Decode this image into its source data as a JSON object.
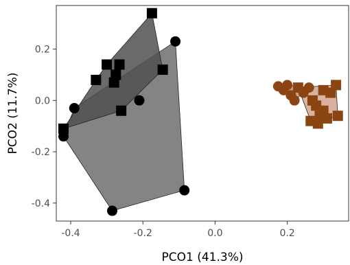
{
  "chart_data": {
    "type": "scatter",
    "title": "",
    "xlabel": "PCO1 (41.3%)",
    "ylabel": "PCO2 (11.7%)",
    "xlim": [
      -0.44,
      0.37
    ],
    "ylim": [
      -0.47,
      0.37
    ],
    "x_ticks": [
      -0.4,
      -0.2,
      0.0,
      0.2
    ],
    "x_tick_labels": [
      "-0.4",
      "-0.2",
      "0.0",
      "0.2"
    ],
    "y_ticks": [
      -0.4,
      -0.2,
      0.0,
      0.2
    ],
    "y_tick_labels": [
      "-0.4",
      "-0.2",
      "0.0",
      "0.2"
    ],
    "grid": false,
    "legend": "none",
    "series": [
      {
        "group": "black-circles",
        "shape": "circle",
        "color": "#000000",
        "hull_fill": "#6e6e6e",
        "hull_opacity": 0.85,
        "points": [
          [
            -0.42,
            -0.14
          ],
          [
            -0.39,
            -0.03
          ],
          [
            -0.285,
            -0.43
          ],
          [
            -0.11,
            0.23
          ],
          [
            -0.21,
            -0.0
          ],
          [
            -0.085,
            -0.35
          ]
        ]
      },
      {
        "group": "black-squares",
        "shape": "square",
        "color": "#000000",
        "hull_fill": "#505050",
        "hull_opacity": 0.85,
        "points": [
          [
            -0.175,
            0.34
          ],
          [
            -0.42,
            -0.11
          ],
          [
            -0.33,
            0.08
          ],
          [
            -0.3,
            0.14
          ],
          [
            -0.265,
            0.14
          ],
          [
            -0.275,
            0.1
          ],
          [
            -0.28,
            0.07
          ],
          [
            -0.145,
            0.12
          ],
          [
            -0.26,
            -0.04
          ]
        ]
      },
      {
        "group": "brown-circles",
        "shape": "circle",
        "color": "#8b4513",
        "hull_fill": "#a0522d",
        "hull_opacity": 0.55,
        "points": [
          [
            0.175,
            0.055
          ],
          [
            0.19,
            0.04
          ],
          [
            0.21,
            0.02
          ],
          [
            0.22,
            0.0
          ],
          [
            0.245,
            0.03
          ],
          [
            0.26,
            0.05
          ],
          [
            0.2,
            0.06
          ]
        ]
      },
      {
        "group": "brown-squares",
        "shape": "square",
        "color": "#8b4513",
        "hull_fill": "#c08060",
        "hull_opacity": 0.6,
        "points": [
          [
            0.23,
            0.05
          ],
          [
            0.27,
            0.0
          ],
          [
            0.28,
            -0.02
          ],
          [
            0.3,
            0.04
          ],
          [
            0.32,
            0.03
          ],
          [
            0.335,
            0.06
          ],
          [
            0.34,
            -0.06
          ],
          [
            0.31,
            -0.07
          ],
          [
            0.3,
            -0.04
          ],
          [
            0.285,
            -0.09
          ],
          [
            0.265,
            -0.08
          ],
          [
            0.29,
            -0.06
          ]
        ]
      }
    ]
  }
}
